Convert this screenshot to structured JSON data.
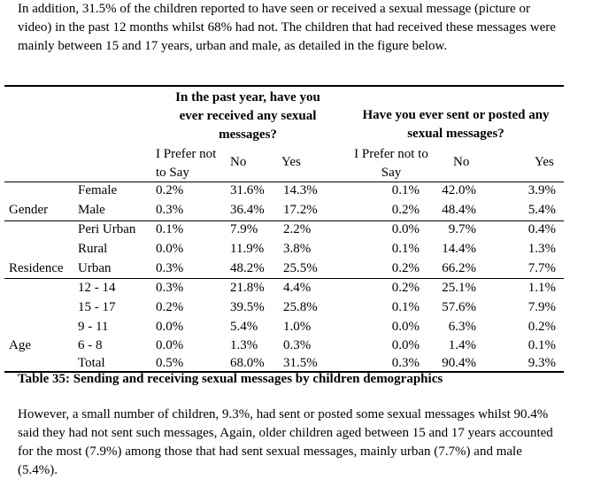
{
  "intro_paragraph": "In addition, 31.5% of the children reported to have seen or received a sexual message (picture or video) in the past 12 months whilst 68% had not. The children that had received these messages were mainly between 15 and 17 years, urban and male, as detailed in the figure below.",
  "table": {
    "header_received": "In the past year, have you ever received any sexual messages?",
    "header_sent": "Have you ever sent or posted any sexual messages?",
    "sub_received": {
      "prefer": "I Prefer not to Say",
      "no": "No",
      "yes": "Yes"
    },
    "sub_sent": {
      "prefer": "I Prefer not to Say",
      "no": "No",
      "yes": "Yes"
    },
    "rows": [
      {
        "group": "",
        "label": "Female",
        "r": [
          "0.2%",
          "31.6%",
          "14.3%"
        ],
        "s": [
          "0.1%",
          "42.0%",
          "3.9%"
        ]
      },
      {
        "group": "Gender",
        "label": "Male",
        "r": [
          "0.3%",
          "36.4%",
          "17.2%"
        ],
        "s": [
          "0.2%",
          "48.4%",
          "5.4%"
        ]
      },
      {
        "group": "",
        "label": "Peri Urban",
        "r": [
          "0.1%",
          "7.9%",
          "2.2%"
        ],
        "s": [
          "0.0%",
          "9.7%",
          "0.4%"
        ]
      },
      {
        "group": "",
        "label": "Rural",
        "r": [
          "0.0%",
          "11.9%",
          "3.8%"
        ],
        "s": [
          "0.1%",
          "14.4%",
          "1.3%"
        ]
      },
      {
        "group": "Residence",
        "label": "Urban",
        "r": [
          "0.3%",
          "48.2%",
          "25.5%"
        ],
        "s": [
          "0.2%",
          "66.2%",
          "7.7%"
        ]
      },
      {
        "group": "",
        "label": "12 - 14",
        "r": [
          "0.3%",
          "21.8%",
          "4.4%"
        ],
        "s": [
          "0.2%",
          "25.1%",
          "1.1%"
        ]
      },
      {
        "group": "",
        "label": "15 - 17",
        "r": [
          "0.2%",
          "39.5%",
          "25.8%"
        ],
        "s": [
          "0.1%",
          "57.6%",
          "7.9%"
        ]
      },
      {
        "group": "",
        "label": "9 - 11",
        "r": [
          "0.0%",
          "5.4%",
          "1.0%"
        ],
        "s": [
          "0.0%",
          "6.3%",
          "0.2%"
        ]
      },
      {
        "group": "Age",
        "label": "6 - 8",
        "r": [
          "0.0%",
          "1.3%",
          "0.3%"
        ],
        "s": [
          "0.0%",
          "1.4%",
          "0.1%"
        ]
      },
      {
        "group": "",
        "label": "Total",
        "r": [
          "0.5%",
          "68.0%",
          "31.5%"
        ],
        "s": [
          "0.3%",
          "90.4%",
          "9.3%"
        ]
      }
    ],
    "caption": "Table 35: Sending and receiving sexual messages by children demographics"
  },
  "closing_paragraph": "However, a small number of children, 9.3%, had sent or posted some sexual messages whilst 90.4% said they had not sent such messages, Again, older children aged between 15 and 17 years accounted for the most (7.9%) among those that had sent sexual messages, mainly urban (7.7%) and male (5.4%)."
}
